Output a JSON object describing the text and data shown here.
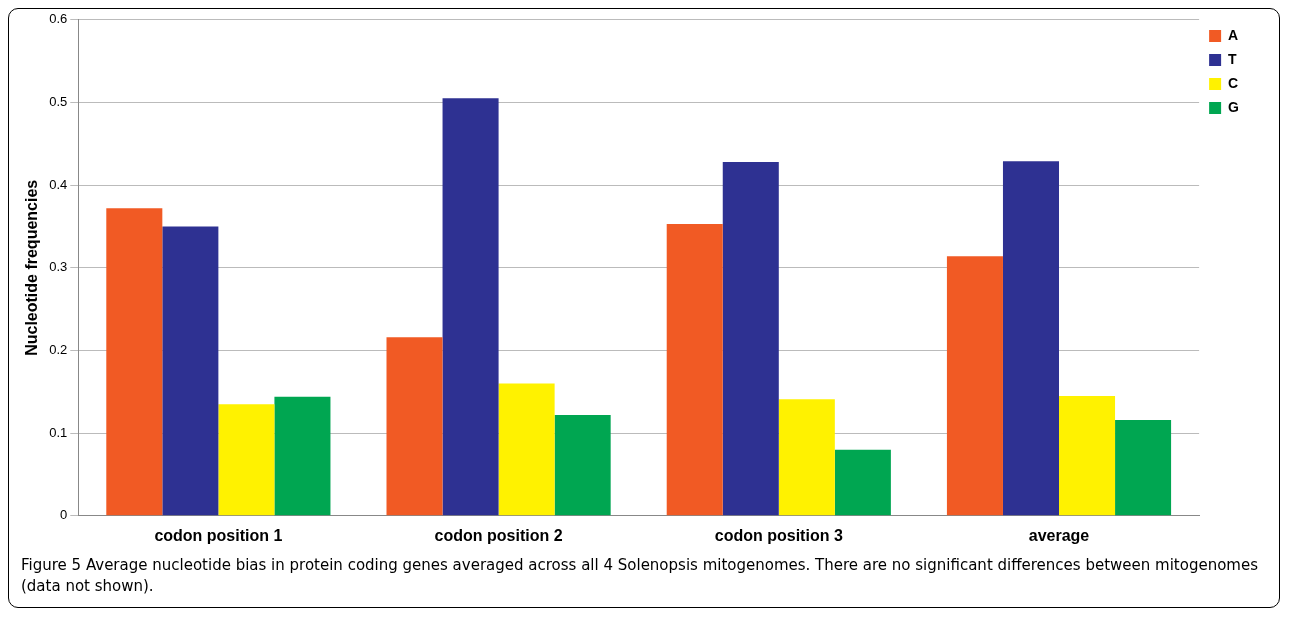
{
  "chart_data": {
    "type": "bar",
    "ylabel": "Nucleotide frequencies",
    "categories": [
      "codon position 1",
      "codon position 2",
      "codon position 3",
      "average"
    ],
    "series": [
      {
        "name": "A",
        "color": "#f15a24",
        "values": [
          0.372,
          0.216,
          0.353,
          0.314
        ]
      },
      {
        "name": "T",
        "color": "#2e3192",
        "values": [
          0.35,
          0.505,
          0.428,
          0.429
        ]
      },
      {
        "name": "C",
        "color": "#fff200",
        "values": [
          0.135,
          0.16,
          0.141,
          0.145
        ]
      },
      {
        "name": "G",
        "color": "#00a651",
        "values": [
          0.144,
          0.122,
          0.08,
          0.116
        ]
      }
    ],
    "ylim": [
      0,
      0.6
    ],
    "yticks": [
      0,
      0.1,
      0.2,
      0.3,
      0.4,
      0.5,
      0.6
    ],
    "grid": "y",
    "legend": "top right",
    "annotations": [
      "Figure 5 Average nucleotide bias in protein coding genes averaged across all 4 Solenopsis mitogenomes. There are no significant differences between mitogenomes (data not shown)."
    ]
  }
}
